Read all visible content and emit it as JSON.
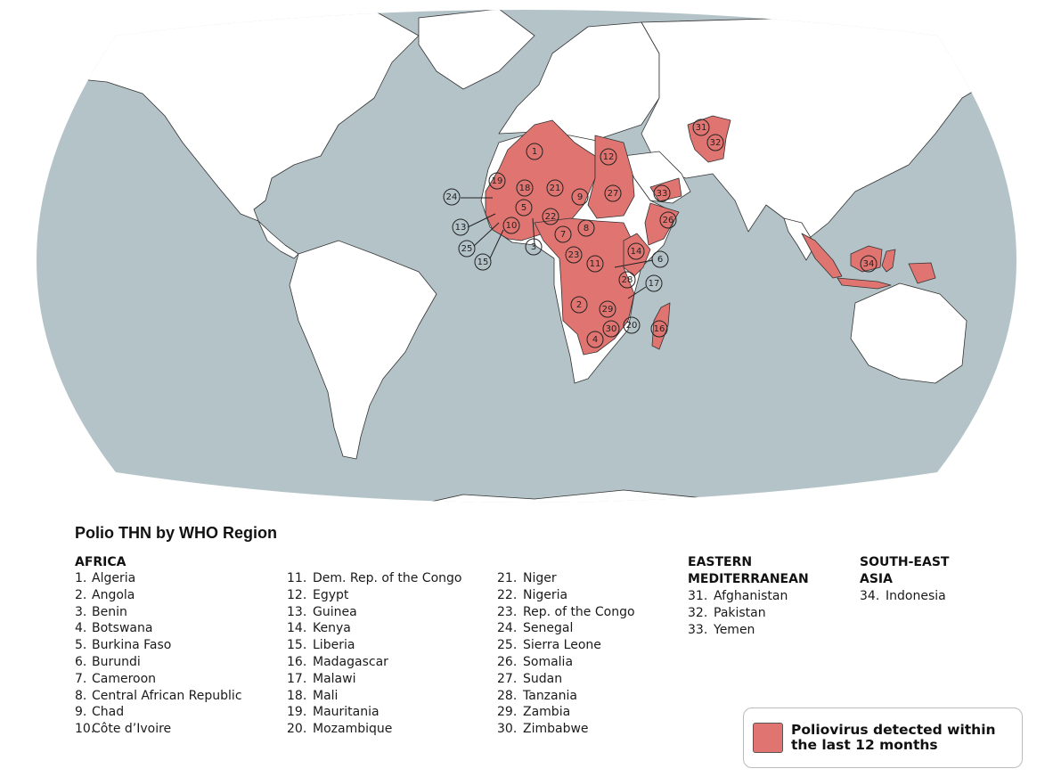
{
  "map": {
    "ocean_color": "#b3c3c8",
    "land_color": "#ffffff",
    "affected_color": "#e07470",
    "border_color": "#333333",
    "markers": [
      {
        "label": "1"
      },
      {
        "label": "12"
      },
      {
        "label": "31"
      },
      {
        "label": "32"
      },
      {
        "label": "19"
      },
      {
        "label": "18"
      },
      {
        "label": "21"
      },
      {
        "label": "9"
      },
      {
        "label": "27"
      },
      {
        "label": "33"
      },
      {
        "label": "24"
      },
      {
        "label": "5"
      },
      {
        "label": "22"
      },
      {
        "label": "26"
      },
      {
        "label": "13"
      },
      {
        "label": "10"
      },
      {
        "label": "3"
      },
      {
        "label": "7"
      },
      {
        "label": "8"
      },
      {
        "label": "25"
      },
      {
        "label": "15"
      },
      {
        "label": "14"
      },
      {
        "label": "23"
      },
      {
        "label": "11"
      },
      {
        "label": "6"
      },
      {
        "label": "28"
      },
      {
        "label": "17"
      },
      {
        "label": "2"
      },
      {
        "label": "29"
      },
      {
        "label": "20"
      },
      {
        "label": "30"
      },
      {
        "label": "4"
      },
      {
        "label": "16"
      },
      {
        "label": "34"
      }
    ]
  },
  "legend_title": "Polio THN by WHO Region",
  "regions": {
    "africa": {
      "heading": "AFRICA",
      "columns": [
        [
          {
            "num": "1.",
            "name": "Algeria"
          },
          {
            "num": "2.",
            "name": "Angola"
          },
          {
            "num": "3.",
            "name": "Benin"
          },
          {
            "num": "4.",
            "name": "Botswana"
          },
          {
            "num": "5.",
            "name": "Burkina Faso"
          },
          {
            "num": "6.",
            "name": "Burundi"
          },
          {
            "num": "7.",
            "name": "Cameroon"
          },
          {
            "num": "8.",
            "name": "Central African Republic"
          },
          {
            "num": "9.",
            "name": "Chad"
          },
          {
            "num": "10.",
            "name": "Côte d’Ivoire"
          }
        ],
        [
          {
            "num": "11.",
            "name": "Dem. Rep. of the Congo"
          },
          {
            "num": "12.",
            "name": "Egypt"
          },
          {
            "num": "13.",
            "name": "Guinea"
          },
          {
            "num": "14.",
            "name": "Kenya"
          },
          {
            "num": "15.",
            "name": "Liberia"
          },
          {
            "num": "16.",
            "name": "Madagascar"
          },
          {
            "num": "17.",
            "name": "Malawi"
          },
          {
            "num": "18.",
            "name": "Mali"
          },
          {
            "num": "19.",
            "name": "Mauritania"
          },
          {
            "num": "20.",
            "name": "Mozambique"
          }
        ],
        [
          {
            "num": "21.",
            "name": "Niger"
          },
          {
            "num": "22.",
            "name": "Nigeria"
          },
          {
            "num": "23.",
            "name": "Rep. of the Congo"
          },
          {
            "num": "24.",
            "name": "Senegal"
          },
          {
            "num": "25.",
            "name": "Sierra Leone"
          },
          {
            "num": "26.",
            "name": "Somalia"
          },
          {
            "num": "27.",
            "name": "Sudan"
          },
          {
            "num": "28.",
            "name": "Tanzania"
          },
          {
            "num": "29.",
            "name": "Zambia"
          },
          {
            "num": "30.",
            "name": "Zimbabwe"
          }
        ]
      ]
    },
    "eastern_mediterranean": {
      "heading_line1": "EASTERN",
      "heading_line2": "MEDITERRANEAN",
      "items": [
        {
          "num": "31.",
          "name": "Afghanistan"
        },
        {
          "num": "32.",
          "name": "Pakistan"
        },
        {
          "num": "33.",
          "name": "Yemen"
        }
      ]
    },
    "south_east_asia": {
      "heading_line1": "SOUTH-EAST",
      "heading_line2": "ASIA",
      "items": [
        {
          "num": "34.",
          "name": "Indonesia"
        }
      ]
    }
  },
  "legend": {
    "swatch_color": "#e07470",
    "label_line1": "Poliovirus detected within",
    "label_line2": "the last 12 months"
  }
}
